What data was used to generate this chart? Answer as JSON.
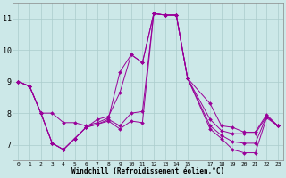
{
  "xlabel": "Windchill (Refroidissement éolien,°C)",
  "background_color": "#cce8e8",
  "grid_color": "#aacccc",
  "line_color": "#990099",
  "xlim": [
    -0.5,
    23.5
  ],
  "ylim": [
    6.5,
    11.5
  ],
  "yticks": [
    7,
    8,
    9,
    10,
    11
  ],
  "xticks": [
    0,
    1,
    2,
    3,
    4,
    5,
    6,
    7,
    8,
    9,
    10,
    11,
    12,
    13,
    14,
    15,
    17,
    18,
    19,
    20,
    21,
    22,
    23
  ],
  "series": [
    {
      "x": [
        0,
        1,
        2,
        3,
        4,
        5,
        6,
        7,
        8,
        9,
        10,
        11,
        12,
        13,
        14,
        15,
        17,
        18,
        19,
        20,
        21,
        22,
        23
      ],
      "y": [
        9.0,
        8.85,
        8.0,
        8.0,
        7.7,
        7.7,
        7.6,
        7.7,
        7.85,
        9.3,
        9.85,
        9.6,
        11.15,
        11.1,
        11.1,
        9.1,
        8.3,
        7.6,
        7.55,
        7.4,
        7.4,
        7.95,
        7.6
      ]
    },
    {
      "x": [
        0,
        1,
        2,
        3,
        4,
        5,
        6,
        7,
        8,
        9,
        10,
        11,
        12,
        13,
        14,
        15,
        17,
        18,
        19,
        20,
        21,
        22,
        23
      ],
      "y": [
        9.0,
        8.85,
        8.0,
        7.05,
        6.85,
        7.2,
        7.55,
        7.8,
        7.9,
        8.65,
        9.85,
        9.6,
        11.15,
        11.1,
        11.1,
        9.1,
        7.8,
        7.45,
        7.35,
        7.35,
        7.35,
        7.9,
        7.6
      ]
    },
    {
      "x": [
        0,
        1,
        2,
        3,
        4,
        5,
        6,
        7,
        8,
        9,
        10,
        11,
        12,
        13,
        14,
        15,
        17,
        18,
        19,
        20,
        21,
        22,
        23
      ],
      "y": [
        9.0,
        8.85,
        8.0,
        7.05,
        6.85,
        7.2,
        7.55,
        7.65,
        7.8,
        7.6,
        8.0,
        8.05,
        11.15,
        11.1,
        11.1,
        9.1,
        7.6,
        7.3,
        7.1,
        7.05,
        7.05,
        7.9,
        7.6
      ]
    },
    {
      "x": [
        0,
        1,
        2,
        3,
        4,
        5,
        6,
        7,
        8,
        9,
        10,
        11,
        12,
        13,
        14,
        15,
        17,
        18,
        19,
        20,
        21,
        22,
        23
      ],
      "y": [
        9.0,
        8.85,
        8.0,
        7.05,
        6.85,
        7.2,
        7.55,
        7.65,
        7.75,
        7.5,
        7.75,
        7.7,
        11.15,
        11.1,
        11.1,
        9.1,
        7.5,
        7.2,
        6.85,
        6.75,
        6.75,
        7.85,
        7.6
      ]
    }
  ]
}
